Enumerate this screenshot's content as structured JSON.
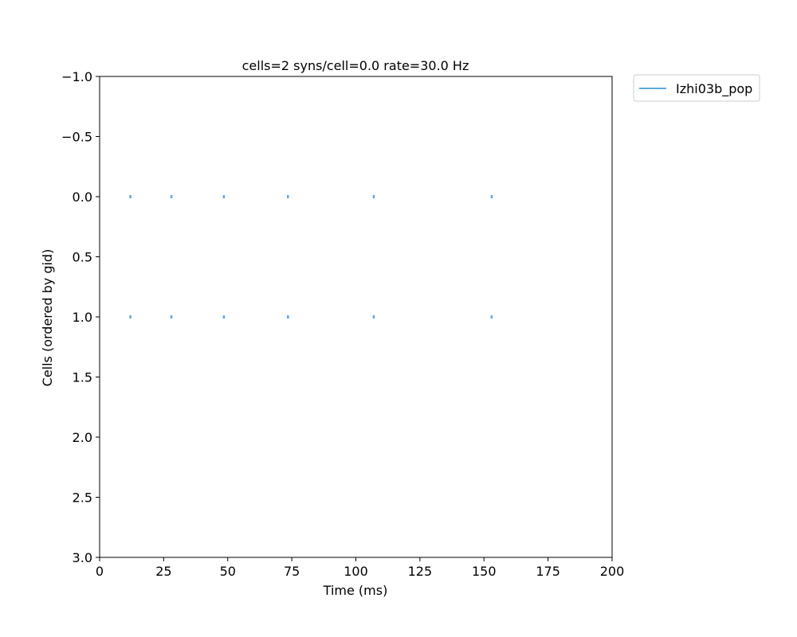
{
  "chart_data": {
    "type": "scatter",
    "title": "cells=2   syns/cell=0.0   rate=30.0 Hz",
    "xlabel": "Time (ms)",
    "ylabel": "Cells (ordered by gid)",
    "xlim": [
      0,
      200
    ],
    "ylim": [
      3.0,
      -1.0
    ],
    "y_inverted": true,
    "grid": false,
    "x_ticks": [
      0,
      25,
      50,
      75,
      100,
      125,
      150,
      175,
      200
    ],
    "x_tick_labels": [
      "0",
      "25",
      "50",
      "75",
      "100",
      "125",
      "150",
      "175",
      "200"
    ],
    "y_ticks": [
      -1.0,
      -0.5,
      0.0,
      0.5,
      1.0,
      1.5,
      2.0,
      2.5,
      3.0
    ],
    "y_tick_labels": [
      "−1.0",
      "−0.5",
      "0.0",
      "0.5",
      "1.0",
      "1.5",
      "2.0",
      "2.5",
      "3.0"
    ],
    "legend_position": "outside-top-right",
    "series": [
      {
        "name": "Izhi03b_pop",
        "color": "#5fa8dc",
        "marker": "vertical-tick",
        "points": [
          {
            "x": 12,
            "y": 0
          },
          {
            "x": 28,
            "y": 0
          },
          {
            "x": 48.5,
            "y": 0
          },
          {
            "x": 73.5,
            "y": 0
          },
          {
            "x": 107,
            "y": 0
          },
          {
            "x": 153,
            "y": 0
          },
          {
            "x": 12,
            "y": 1
          },
          {
            "x": 28,
            "y": 1
          },
          {
            "x": 48.5,
            "y": 1
          },
          {
            "x": 73.5,
            "y": 1
          },
          {
            "x": 107,
            "y": 1
          },
          {
            "x": 153,
            "y": 1
          }
        ]
      }
    ]
  }
}
